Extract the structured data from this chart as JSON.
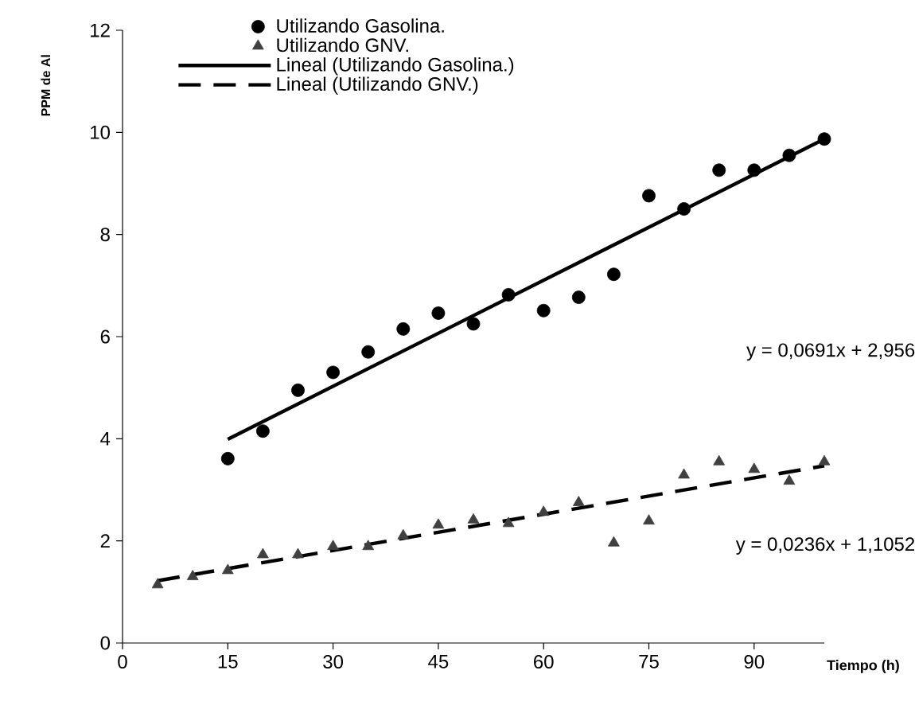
{
  "chart_data": {
    "type": "scatter",
    "xlabel": "Tiempo (h)",
    "ylabel": "PPM de Al",
    "xlim": [
      0,
      100
    ],
    "ylim": [
      0,
      12
    ],
    "xticks": [
      0,
      15,
      30,
      45,
      60,
      75,
      90
    ],
    "yticks": [
      0,
      2,
      4,
      6,
      8,
      10,
      12
    ],
    "grid": false,
    "legend": "top",
    "series": [
      {
        "name": "Utilizando Gasolina.",
        "marker": "circle",
        "color": "#000000",
        "x": [
          15,
          20,
          25,
          30,
          35,
          40,
          45,
          50,
          55,
          60,
          65,
          70,
          75,
          80,
          85,
          90,
          95,
          100
        ],
        "values": [
          3.61,
          4.15,
          4.95,
          5.3,
          5.7,
          6.15,
          6.46,
          6.25,
          6.82,
          6.51,
          6.77,
          7.22,
          8.76,
          8.5,
          9.26,
          9.26,
          9.55,
          9.87
        ]
      },
      {
        "name": "Utilizando GNV.",
        "marker": "triangle",
        "color": "#404040",
        "x": [
          5,
          10,
          15,
          20,
          25,
          30,
          35,
          40,
          45,
          50,
          55,
          60,
          65,
          70,
          75,
          80,
          85,
          90,
          95,
          100
        ],
        "values": [
          1.14,
          1.3,
          1.42,
          1.73,
          1.73,
          1.89,
          1.89,
          2.1,
          2.31,
          2.41,
          2.34,
          2.56,
          2.75,
          1.96,
          2.39,
          3.29,
          3.55,
          3.4,
          3.17,
          3.55
        ]
      },
      {
        "name": "Lineal (Utilizando Gasolina.)",
        "type": "line",
        "line_style": "solid",
        "marker": "none",
        "color": "#000000",
        "x": [
          15,
          100
        ],
        "values": [
          3.99,
          9.87
        ]
      },
      {
        "name": "Lineal (Utilizando GNV.)",
        "type": "line",
        "line_style": "dashed",
        "marker": "none",
        "color": "#000000",
        "x": [
          5,
          100
        ],
        "values": [
          1.22,
          3.47
        ]
      }
    ],
    "annotations": [
      "y = 0,0691x + 2,956",
      "y = 0,0236x + 1,1052"
    ]
  }
}
